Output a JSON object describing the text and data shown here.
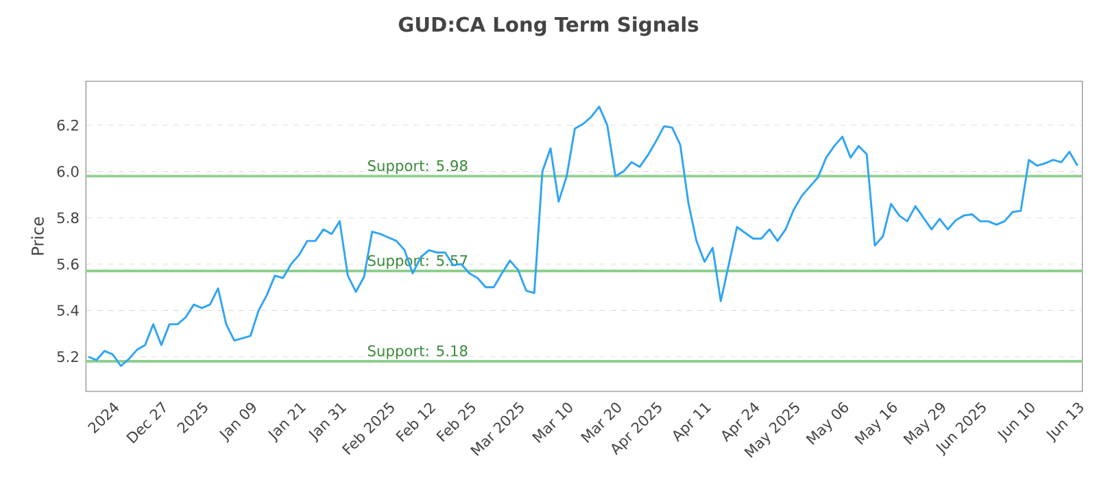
{
  "chart_data": {
    "type": "line",
    "title": "GUD:CA Long Term Signals",
    "ylabel": "Price",
    "categories": [
      null,
      null,
      null,
      "2024",
      null,
      null,
      null,
      null,
      null,
      "Dec 27",
      null,
      null,
      null,
      null,
      "2025",
      null,
      null,
      null,
      null,
      null,
      "Jan 09",
      null,
      null,
      null,
      null,
      null,
      "Jan 21",
      null,
      null,
      null,
      null,
      "Jan 31",
      null,
      null,
      null,
      null,
      null,
      "Feb 2025",
      null,
      null,
      null,
      null,
      "Feb 12",
      null,
      null,
      null,
      null,
      "Feb 25",
      null,
      null,
      null,
      null,
      null,
      "Mar 2025",
      null,
      null,
      null,
      null,
      null,
      "Mar 10",
      null,
      null,
      null,
      null,
      null,
      "Mar 20",
      null,
      null,
      null,
      null,
      "Apr 2025",
      null,
      null,
      null,
      null,
      null,
      "Apr 11",
      null,
      null,
      null,
      null,
      null,
      "Apr 24",
      null,
      null,
      null,
      null,
      "May 2025",
      null,
      null,
      null,
      null,
      null,
      "May 06",
      null,
      null,
      null,
      null,
      null,
      "May 16",
      null,
      null,
      null,
      null,
      null,
      "May 29",
      null,
      null,
      null,
      null,
      "Jun 2025",
      null,
      null,
      null,
      null,
      null,
      "Jun 10",
      null,
      null,
      null,
      null,
      null,
      "Jun 13"
    ],
    "series": [
      {
        "color": "#2fa4f5",
        "values": [
          5.2,
          5.185,
          5.225,
          5.21,
          5.16,
          5.19,
          5.23,
          5.25,
          5.34,
          5.25,
          5.34,
          5.34,
          5.37,
          5.425,
          5.41,
          5.425,
          5.495,
          5.34,
          5.27,
          5.28,
          5.29,
          5.4,
          5.465,
          5.55,
          5.54,
          5.6,
          5.64,
          5.7,
          5.7,
          5.75,
          5.73,
          5.785,
          5.55,
          5.48,
          5.545,
          5.74,
          5.73,
          5.715,
          5.7,
          5.66,
          5.56,
          5.63,
          5.66,
          5.65,
          5.65,
          5.595,
          5.6,
          5.56,
          5.54,
          5.5,
          5.5,
          5.56,
          5.615,
          5.575,
          5.485,
          5.475,
          6.0,
          6.1,
          5.87,
          5.98,
          6.185,
          6.205,
          6.235,
          6.28,
          6.2,
          5.98,
          6.0,
          6.04,
          6.02,
          6.07,
          6.13,
          6.195,
          6.19,
          6.115,
          5.865,
          5.7,
          5.61,
          5.67,
          5.44,
          5.6,
          5.76,
          5.735,
          5.71,
          5.71,
          5.75,
          5.7,
          5.75,
          5.835,
          5.895,
          5.935,
          5.975,
          6.06,
          6.11,
          6.15,
          6.06,
          6.11,
          6.075,
          5.68,
          5.72,
          5.86,
          5.81,
          5.785,
          5.85,
          5.8,
          5.75,
          5.795,
          5.75,
          5.79,
          5.81,
          5.815,
          5.785,
          5.785,
          5.77,
          5.785,
          5.825,
          5.83,
          6.05,
          6.025,
          6.035,
          6.05,
          6.04,
          6.085,
          6.025
        ]
      }
    ],
    "ylim": [
      5.05,
      6.39
    ],
    "yticks": [
      5.2,
      5.4,
      5.6,
      5.8,
      {
        "value": 6.0,
        "label": "6.0"
      },
      6.2
    ],
    "grid": "y",
    "marker": "none",
    "line_style": "solid",
    "ref_lines": [
      {
        "axis": "y",
        "value": 5.98,
        "label": "Support: 5.98",
        "color": "#8fcf8f"
      },
      {
        "axis": "y",
        "value": 5.57,
        "label": "Support: 5.57",
        "color": "#8fcf8f"
      },
      {
        "axis": "y",
        "value": 5.18,
        "label": "Support: 5.18",
        "color": "#8fcf8f"
      }
    ]
  }
}
